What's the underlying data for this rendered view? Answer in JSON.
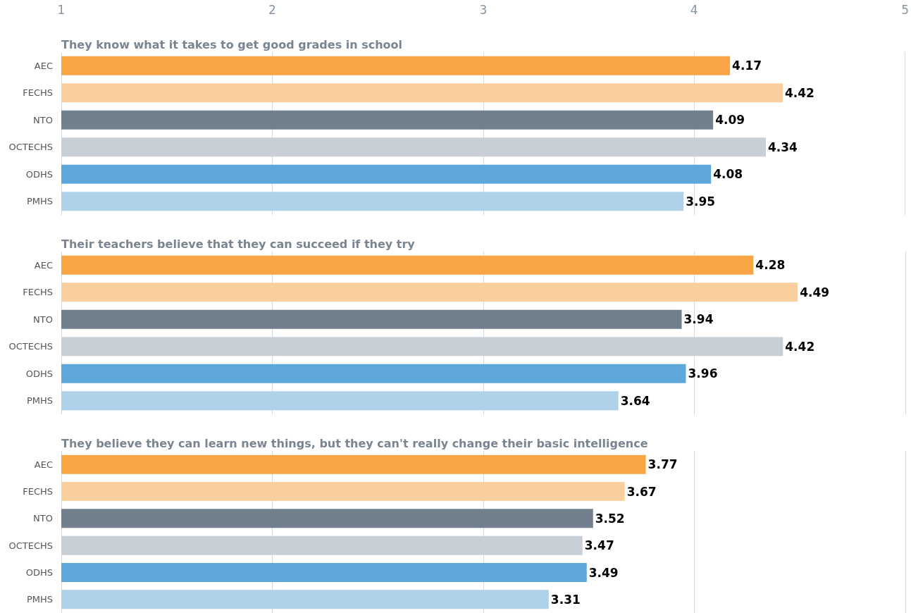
{
  "chart_data": [
    {
      "type": "bar",
      "orientation": "horizontal",
      "title": "They know what it takes to get good grades in school",
      "categories": [
        "AEC",
        "FECHS",
        "NTO",
        "OCTECHS",
        "ODHS",
        "PMHS"
      ],
      "values": [
        4.17,
        4.42,
        4.09,
        4.34,
        4.08,
        3.95
      ],
      "colors": [
        "#f7a545",
        "#f9d09d",
        "#727f8c",
        "#c9cfd6",
        "#5ea7da",
        "#afd2ea"
      ],
      "xlim": [
        1,
        5
      ],
      "xticks": [
        1,
        2,
        3,
        4,
        5
      ],
      "grid": "x",
      "data_labels": true
    },
    {
      "type": "bar",
      "orientation": "horizontal",
      "title": "Their teachers believe that they can succeed if they try",
      "categories": [
        "AEC",
        "FECHS",
        "NTO",
        "OCTECHS",
        "ODHS",
        "PMHS"
      ],
      "values": [
        4.28,
        4.49,
        3.94,
        4.42,
        3.96,
        3.64
      ],
      "colors": [
        "#f7a545",
        "#f9d09d",
        "#727f8c",
        "#c9cfd6",
        "#5ea7da",
        "#afd2ea"
      ],
      "xlim": [
        1,
        5
      ],
      "xticks": [
        1,
        2,
        3,
        4,
        5
      ],
      "grid": "x",
      "data_labels": true,
      "tick_labels": "y"
    },
    {
      "type": "bar",
      "orientation": "horizontal",
      "title": "They believe they can learn new things, but they can't really change their basic intelligence",
      "categories": [
        "AEC",
        "FECHS",
        "NTO",
        "OCTECHS",
        "ODHS",
        "PMHS"
      ],
      "values": [
        3.77,
        3.67,
        3.52,
        3.47,
        3.49,
        3.31
      ],
      "colors": [
        "#f7a545",
        "#f9d09d",
        "#727f8c",
        "#c9cfd6",
        "#5ea7da",
        "#afd2ea"
      ],
      "xlim": [
        1,
        5
      ],
      "xticks": [
        1,
        2,
        3,
        4,
        5
      ],
      "grid": "x",
      "data_labels": true,
      "tick_labels": "y"
    }
  ]
}
